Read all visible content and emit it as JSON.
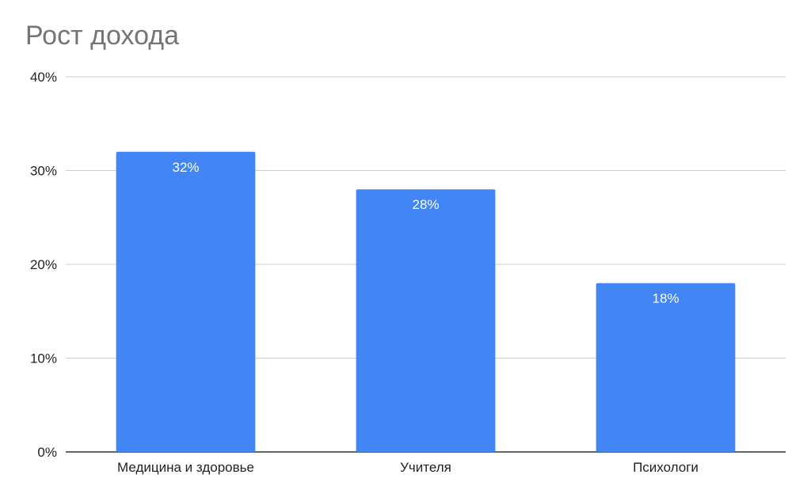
{
  "chart_data": {
    "type": "bar",
    "title": "Рост дохода",
    "categories": [
      "Медицина и здоровье",
      "Учителя",
      "Психологи"
    ],
    "values": [
      32,
      28,
      18
    ],
    "data_labels": [
      "32%",
      "28%",
      "18%"
    ],
    "ylim": [
      0,
      40
    ],
    "yticks": [
      0,
      10,
      20,
      30,
      40
    ],
    "ytick_labels": [
      "0%",
      "10%",
      "20%",
      "30%",
      "40%"
    ],
    "xlabel": "",
    "ylabel": "",
    "grid": true,
    "legend": "none",
    "bar_color": "#4285f4"
  }
}
